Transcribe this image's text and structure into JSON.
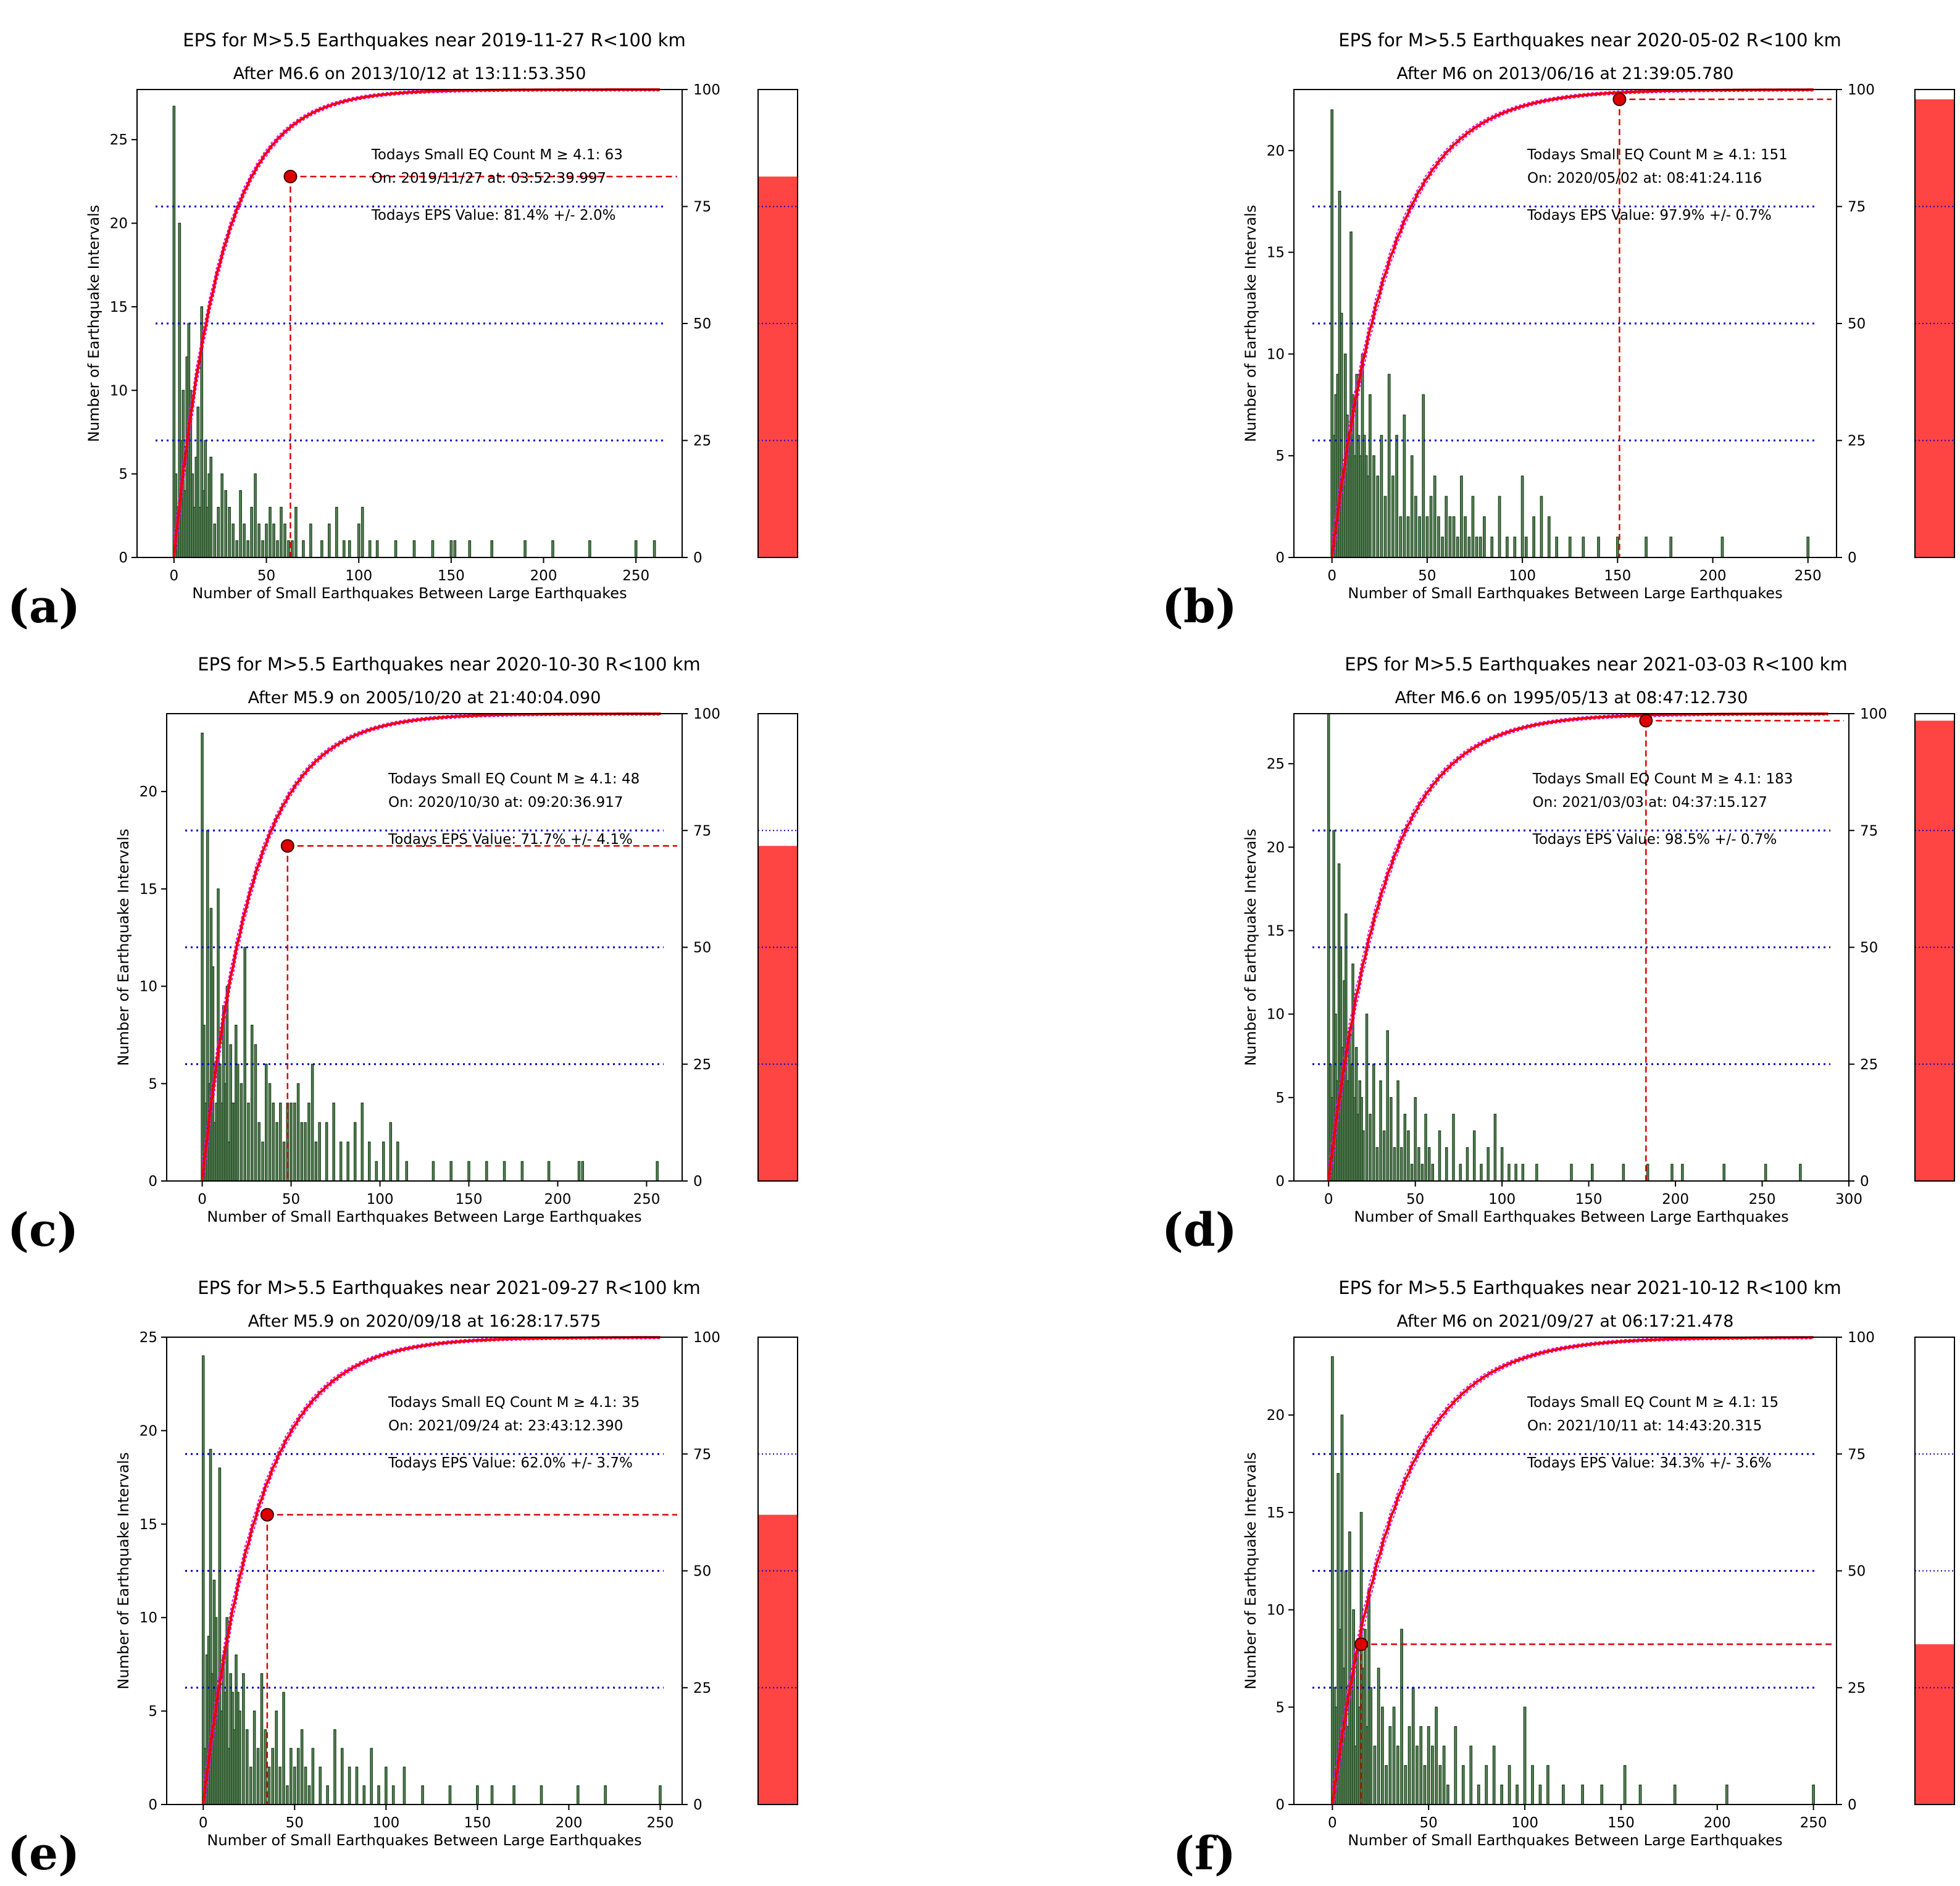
{
  "figure": {
    "panel_letters": [
      "(a)",
      "(b)",
      "(c)",
      "(d)",
      "(e)",
      "(f)"
    ],
    "colors": {
      "bar_fill": "#4e7a4e",
      "bar_edge": "#1f4a1f",
      "cumulative": "#ee0000",
      "band": "#ee00ee",
      "quartile": "#0000cc",
      "marker": "#dd0000",
      "gauge_fill": "#ff4444"
    }
  },
  "chart_data": [
    {
      "type": "bar",
      "panel": "(a)",
      "title": "EPS for M>5.5 Earthquakes near 2019-11-27       R<100 km",
      "subtitle": "After M6.6 on 2013/10/12 at 13:11:53.350",
      "xlabel": "Number of Small Earthquakes Between Large Earthquakes",
      "ylabel": "Number of Earthquake Intervals",
      "xlim": [
        -20,
        275
      ],
      "ylim": [
        0,
        28
      ],
      "y2lim": [
        0,
        100
      ],
      "xticks": [
        0,
        50,
        100,
        150,
        200,
        250
      ],
      "yticks": [
        0,
        5,
        10,
        15,
        20,
        25
      ],
      "y2ticks": [
        0,
        25,
        50,
        75,
        100
      ],
      "bars_x": [
        0,
        1,
        2,
        3,
        4,
        5,
        6,
        7,
        8,
        9,
        10,
        11,
        12,
        13,
        14,
        15,
        16,
        17,
        18,
        19,
        20,
        22,
        24,
        26,
        28,
        30,
        32,
        34,
        36,
        38,
        40,
        42,
        44,
        46,
        48,
        50,
        52,
        54,
        56,
        58,
        60,
        62,
        64,
        66,
        70,
        74,
        80,
        84,
        88,
        92,
        95,
        100,
        102,
        106,
        110,
        120,
        130,
        140,
        150,
        152,
        160,
        172,
        190,
        205,
        225,
        250,
        260
      ],
      "bars_count": [
        27,
        5,
        3,
        20,
        7,
        10,
        4,
        12,
        14,
        10,
        5,
        3,
        6,
        9,
        3,
        15,
        4,
        7,
        3,
        5,
        6,
        2,
        3,
        5,
        4,
        3,
        2,
        1,
        4,
        2,
        1,
        3,
        5,
        2,
        1,
        2,
        3,
        2,
        1,
        3,
        2,
        1,
        1,
        3,
        1,
        2,
        1,
        2,
        3,
        1,
        1,
        2,
        3,
        1,
        1,
        1,
        1,
        1,
        1,
        1,
        1,
        1,
        1,
        1,
        1,
        1,
        1
      ],
      "median_x": 14,
      "scale_k": 25,
      "today_count": 63,
      "eps_percent": 81.4,
      "eps_error": 2.0,
      "info_count": "Todays Small EQ Count M ≥ 4.1:  63",
      "info_date": "On:  2019/11/27   at:  03:52:39.997",
      "info_eps": "Todays EPS Value:  81.4% +/- 2.0%"
    },
    {
      "type": "bar",
      "panel": "(b)",
      "title": "EPS for M>5.5 Earthquakes near 2020-05-02       R<100 km",
      "subtitle": "After M6 on 2013/06/16 at 21:39:05.780",
      "xlabel": "Number of Small Earthquakes Between Large Earthquakes",
      "ylabel": "Number of Earthquake Intervals",
      "xlim": [
        -20,
        265
      ],
      "ylim": [
        0,
        23
      ],
      "y2lim": [
        0,
        100
      ],
      "xticks": [
        0,
        50,
        100,
        150,
        200,
        250
      ],
      "yticks": [
        0,
        5,
        10,
        15,
        20
      ],
      "y2ticks": [
        0,
        25,
        50,
        75,
        100
      ],
      "bars_x": [
        0,
        1,
        2,
        3,
        4,
        5,
        6,
        7,
        8,
        9,
        10,
        11,
        12,
        13,
        14,
        15,
        16,
        17,
        18,
        19,
        20,
        22,
        24,
        26,
        28,
        30,
        32,
        34,
        36,
        38,
        40,
        42,
        44,
        46,
        48,
        50,
        52,
        54,
        56,
        58,
        60,
        62,
        64,
        66,
        68,
        70,
        72,
        74,
        76,
        78,
        80,
        84,
        88,
        92,
        96,
        100,
        102,
        106,
        110,
        114,
        118,
        125,
        132,
        140,
        150,
        165,
        178,
        205,
        250
      ],
      "bars_count": [
        22,
        6,
        8,
        9,
        18,
        12,
        4,
        10,
        7,
        6,
        16,
        8,
        5,
        9,
        6,
        5,
        10,
        6,
        5,
        4,
        8,
        5,
        4,
        6,
        3,
        9,
        4,
        6,
        2,
        7,
        2,
        5,
        3,
        2,
        8,
        2,
        3,
        4,
        2,
        1,
        3,
        2,
        2,
        1,
        4,
        2,
        1,
        3,
        1,
        1,
        2,
        1,
        3,
        1,
        1,
        4,
        1,
        2,
        3,
        2,
        1,
        1,
        1,
        1,
        1,
        1,
        1,
        1,
        1
      ],
      "median_x": 18,
      "scale_k": 30,
      "today_count": 151,
      "eps_percent": 97.9,
      "eps_error": 0.7,
      "info_count": "Todays Small EQ Count M ≥ 4.1:  151",
      "info_date": "On:  2020/05/02   at:  08:41:24.116",
      "info_eps": "Todays EPS Value:  97.9% +/- 0.7%"
    },
    {
      "type": "bar",
      "panel": "(c)",
      "title": "EPS for M>5.5 Earthquakes near 2020-10-30       R<100 km",
      "subtitle": "After M5.9 on 2005/10/20 at 21:40:04.090",
      "xlabel": "Number of Small Earthquakes Between Large Earthquakes",
      "ylabel": "Number of Earthquake Intervals",
      "xlim": [
        -20,
        270
      ],
      "ylim": [
        0,
        24
      ],
      "y2lim": [
        0,
        100
      ],
      "xticks": [
        0,
        50,
        100,
        150,
        200,
        250
      ],
      "yticks": [
        0,
        5,
        10,
        15,
        20
      ],
      "y2ticks": [
        0,
        25,
        50,
        75,
        100
      ],
      "bars_x": [
        0,
        1,
        2,
        3,
        4,
        5,
        6,
        7,
        8,
        9,
        10,
        11,
        12,
        13,
        14,
        15,
        16,
        17,
        18,
        19,
        20,
        22,
        24,
        26,
        28,
        30,
        32,
        34,
        36,
        38,
        40,
        42,
        44,
        46,
        48,
        50,
        52,
        54,
        56,
        58,
        60,
        62,
        64,
        66,
        70,
        74,
        78,
        82,
        86,
        90,
        94,
        98,
        102,
        106,
        110,
        115,
        130,
        140,
        150,
        160,
        170,
        180,
        195,
        212,
        214,
        256
      ],
      "bars_count": [
        23,
        8,
        4,
        18,
        5,
        14,
        11,
        3,
        4,
        15,
        6,
        4,
        9,
        5,
        10,
        2,
        7,
        4,
        4,
        8,
        6,
        5,
        12,
        4,
        8,
        7,
        3,
        2,
        6,
        5,
        4,
        3,
        4,
        2,
        4,
        4,
        4,
        5,
        3,
        3,
        4,
        6,
        2,
        3,
        3,
        4,
        2,
        2,
        3,
        4,
        2,
        1,
        2,
        3,
        2,
        1,
        1,
        1,
        1,
        1,
        1,
        1,
        1,
        1,
        1,
        1
      ],
      "median_x": 19,
      "scale_k": 28,
      "today_count": 48,
      "eps_percent": 71.7,
      "eps_error": 4.1,
      "info_count": "Todays Small EQ Count M ≥ 4.1:  48",
      "info_date": "On:  2020/10/30   at:  09:20:36.917",
      "info_eps": "Todays EPS Value:  71.7% +/- 4.1%"
    },
    {
      "type": "bar",
      "panel": "(d)",
      "title": "EPS for M>5.5 Earthquakes near 2021-03-03       R<100 km",
      "subtitle": "After M6.6 on 1995/05/13 at 08:47:12.730",
      "xlabel": "Number of Small Earthquakes Between Large Earthquakes",
      "ylabel": "Number of Earthquake Intervals",
      "xlim": [
        -20,
        300
      ],
      "ylim": [
        0,
        28
      ],
      "y2lim": [
        0,
        100
      ],
      "xticks": [
        0,
        50,
        100,
        150,
        200,
        250,
        300
      ],
      "yticks": [
        0,
        5,
        10,
        15,
        20,
        25
      ],
      "y2ticks": [
        0,
        25,
        50,
        75,
        100
      ],
      "bars_x": [
        0,
        1,
        2,
        3,
        4,
        5,
        6,
        7,
        8,
        9,
        10,
        11,
        12,
        13,
        14,
        15,
        16,
        17,
        18,
        19,
        20,
        22,
        24,
        26,
        28,
        30,
        32,
        34,
        36,
        38,
        40,
        42,
        44,
        46,
        48,
        50,
        52,
        54,
        56,
        58,
        60,
        64,
        68,
        72,
        76,
        80,
        84,
        88,
        92,
        96,
        100,
        104,
        108,
        112,
        120,
        140,
        152,
        170,
        184,
        198,
        204,
        228,
        252,
        272
      ],
      "bars_count": [
        28,
        7,
        5,
        21,
        10,
        6,
        19,
        14,
        8,
        12,
        16,
        6,
        9,
        7,
        13,
        5,
        8,
        4,
        6,
        5,
        3,
        10,
        4,
        7,
        2,
        6,
        3,
        9,
        5,
        2,
        6,
        2,
        4,
        3,
        1,
        5,
        2,
        1,
        4,
        2,
        1,
        3,
        2,
        4,
        1,
        2,
        3,
        1,
        2,
        4,
        2,
        1,
        1,
        1,
        1,
        1,
        1,
        1,
        1,
        1,
        1,
        1,
        1,
        1
      ],
      "median_x": 22,
      "scale_k": 32,
      "today_count": 183,
      "eps_percent": 98.5,
      "eps_error": 0.7,
      "info_count": "Todays Small EQ Count M ≥ 4.1:  183",
      "info_date": "On:  2021/03/03   at:  04:37:15.127",
      "info_eps": "Todays EPS Value:  98.5% +/- 0.7%"
    },
    {
      "type": "bar",
      "panel": "(e)",
      "title": "EPS for M>5.5 Earthquakes near 2021-09-27       R<100 km",
      "subtitle": "After M5.9 on 2020/09/18 at 16:28:17.575",
      "xlabel": "Number of Small Earthquakes Between Large Earthquakes",
      "ylabel": "Number of Earthquake Intervals",
      "xlim": [
        -20,
        262
      ],
      "ylim": [
        0,
        25
      ],
      "y2lim": [
        0,
        100
      ],
      "xticks": [
        0,
        50,
        100,
        150,
        200,
        250
      ],
      "yticks": [
        0,
        5,
        10,
        15,
        20,
        25
      ],
      "y2ticks": [
        0,
        25,
        50,
        75,
        100
      ],
      "bars_x": [
        0,
        1,
        2,
        3,
        4,
        5,
        6,
        7,
        8,
        9,
        10,
        11,
        12,
        13,
        14,
        15,
        16,
        17,
        18,
        19,
        20,
        22,
        24,
        26,
        28,
        30,
        32,
        34,
        36,
        38,
        40,
        42,
        44,
        46,
        48,
        50,
        52,
        54,
        56,
        58,
        60,
        64,
        68,
        72,
        76,
        80,
        84,
        88,
        92,
        96,
        100,
        104,
        110,
        120,
        135,
        150,
        158,
        170,
        185,
        205,
        220,
        250
      ],
      "bars_count": [
        24,
        3,
        8,
        9,
        19,
        7,
        12,
        10,
        6,
        18,
        5,
        8,
        6,
        10,
        3,
        7,
        6,
        4,
        8,
        6,
        5,
        7,
        4,
        2,
        5,
        3,
        7,
        4,
        2,
        3,
        5,
        2,
        6,
        1,
        3,
        2,
        3,
        4,
        2,
        1,
        3,
        2,
        1,
        4,
        3,
        2,
        2,
        1,
        3,
        1,
        2,
        1,
        2,
        1,
        1,
        1,
        1,
        1,
        1,
        1,
        1,
        1
      ],
      "median_x": 20,
      "scale_k": 30,
      "today_count": 35,
      "eps_percent": 62.0,
      "eps_error": 3.7,
      "info_count": "Todays Small EQ Count M ≥ 4.1:  35",
      "info_date": "On:  2021/09/24   at:  23:43:12.390",
      "info_eps": "Todays EPS Value:  62.0% +/- 3.7%"
    },
    {
      "type": "bar",
      "panel": "(f)",
      "title": "EPS for M>5.5 Earthquakes near 2021-10-12       R<100 km",
      "subtitle": "After M6 on 2021/09/27 at 06:17:21.478",
      "xlabel": "Number of Small Earthquakes Between Large Earthquakes",
      "ylabel": "Number of Earthquake Intervals",
      "xlim": [
        -20,
        262
      ],
      "ylim": [
        0,
        24
      ],
      "y2lim": [
        0,
        100
      ],
      "xticks": [
        0,
        50,
        100,
        150,
        200,
        250
      ],
      "yticks": [
        0,
        5,
        10,
        15,
        20
      ],
      "y2ticks": [
        0,
        25,
        50,
        75,
        100
      ],
      "bars_x": [
        0,
        1,
        2,
        3,
        4,
        5,
        6,
        7,
        8,
        9,
        10,
        11,
        12,
        13,
        14,
        15,
        16,
        17,
        18,
        19,
        20,
        22,
        24,
        26,
        28,
        30,
        32,
        34,
        36,
        38,
        40,
        42,
        44,
        46,
        48,
        50,
        52,
        54,
        56,
        58,
        60,
        64,
        68,
        72,
        76,
        80,
        84,
        88,
        92,
        96,
        100,
        104,
        108,
        112,
        120,
        130,
        140,
        152,
        160,
        178,
        205,
        250
      ],
      "bars_count": [
        23,
        6,
        5,
        17,
        9,
        20,
        7,
        12,
        4,
        14,
        6,
        10,
        3,
        8,
        5,
        15,
        7,
        9,
        4,
        11,
        6,
        3,
        7,
        5,
        2,
        4,
        5,
        3,
        9,
        2,
        4,
        6,
        3,
        4,
        2,
        4,
        3,
        5,
        2,
        3,
        1,
        4,
        2,
        3,
        1,
        2,
        3,
        1,
        2,
        1,
        5,
        2,
        1,
        2,
        1,
        1,
        1,
        2,
        1,
        1,
        1,
        1
      ],
      "median_x": 22,
      "scale_k": 32,
      "today_count": 15,
      "eps_percent": 34.3,
      "eps_error": 3.6,
      "info_count": "Todays Small EQ Count M ≥ 4.1:  15",
      "info_date": "On:  2021/10/11   at:  14:43:20.315",
      "info_eps": "Todays EPS Value:  34.3% +/- 3.6%"
    }
  ]
}
